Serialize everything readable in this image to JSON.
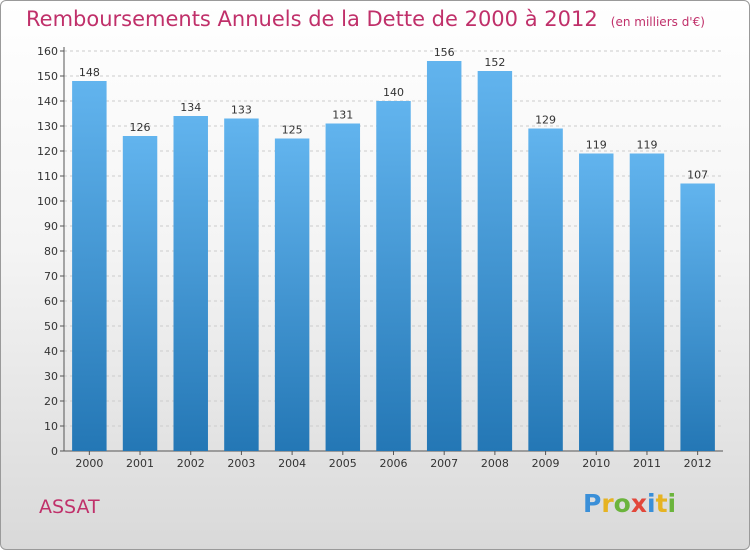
{
  "header": {
    "title": "Remboursements Annuels de la Dette de 2000 à 2012",
    "subtitle": "(en milliers d'€)"
  },
  "footer": {
    "commune": "ASSAT",
    "logo_text": "Proxiti"
  },
  "colors": {
    "title": "#c0306a",
    "bar_top": "#62b4ee",
    "bar_bottom": "#2477b5",
    "logo_letters": [
      "#3a8fd8",
      "#e6b322",
      "#6bb43c",
      "#e2473a",
      "#3a8fd8",
      "#e6b322",
      "#6bb43c"
    ]
  },
  "chart_data": {
    "type": "bar",
    "categories": [
      "2000",
      "2001",
      "2002",
      "2003",
      "2004",
      "2005",
      "2006",
      "2007",
      "2008",
      "2009",
      "2010",
      "2011",
      "2012"
    ],
    "values": [
      148,
      126,
      134,
      133,
      125,
      131,
      140,
      156,
      152,
      129,
      119,
      119,
      107
    ],
    "ylim": [
      0,
      160
    ],
    "ytick_step": 10,
    "grid": true,
    "show_data_labels": true
  }
}
